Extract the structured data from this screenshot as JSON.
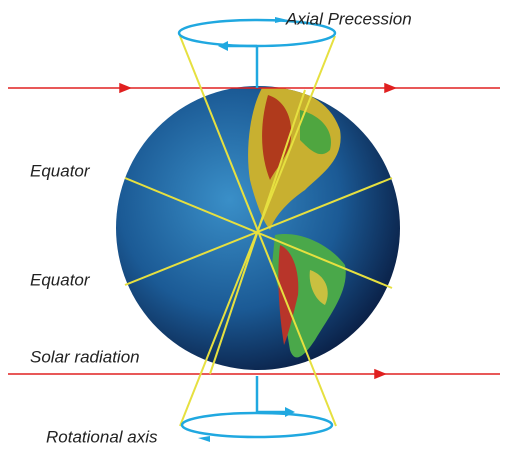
{
  "labels": {
    "axial_precession": "Axial Precession",
    "equator_top": "Equator",
    "equator_bottom": "Equator",
    "solar_radiation": "Solar radiation",
    "rotational_axis": "Rotational axis"
  }
}
